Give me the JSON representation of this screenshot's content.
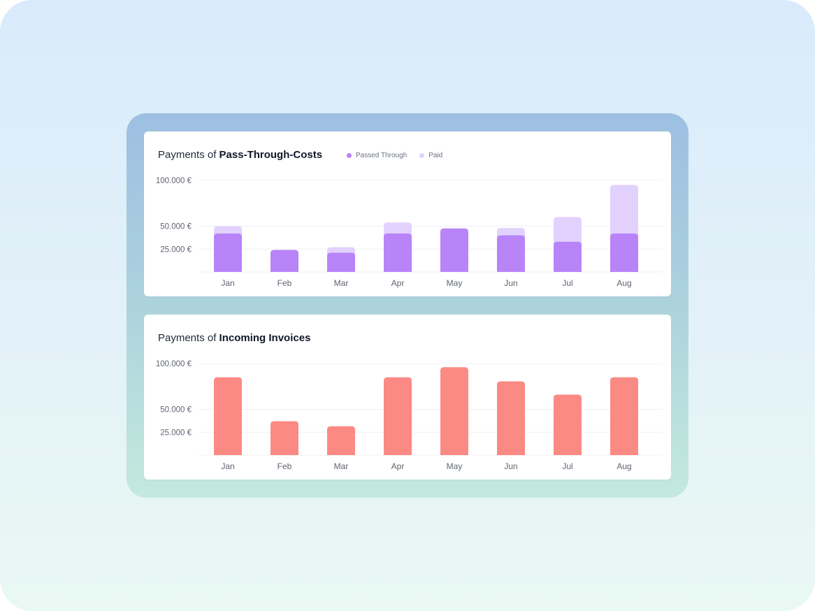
{
  "colors": {
    "passed_through": "#b884f8",
    "paid": "#e3d1fd",
    "incoming": "#fc8a84",
    "grid": "#f0f0f3",
    "tick": "#5f6470"
  },
  "chart_data": [
    {
      "type": "bar",
      "title_prefix": "Payments of ",
      "title_bold": "Pass-Through-Costs",
      "categories": [
        "Jan",
        "Feb",
        "Mar",
        "Apr",
        "May",
        "Jun",
        "Jul",
        "Aug"
      ],
      "series": [
        {
          "name": "Passed Through",
          "values": [
            42000,
            24000,
            21000,
            42000,
            47500,
            40000,
            33000,
            42000
          ]
        },
        {
          "name": "Paid",
          "values": [
            50000,
            24000,
            27000,
            54000,
            47500,
            48000,
            60000,
            95000
          ]
        }
      ],
      "overlay": true,
      "yticks": [
        {
          "value": 25000,
          "label": "25.000 €"
        },
        {
          "value": 50000,
          "label": "50.000 €"
        },
        {
          "value": 100000,
          "label": "100.000 €"
        }
      ],
      "ylim": [
        0,
        100000
      ],
      "legend": "top"
    },
    {
      "type": "bar",
      "title_prefix": "Payments of ",
      "title_bold": "Incoming Invoices",
      "categories": [
        "Jan",
        "Feb",
        "Mar",
        "Apr",
        "May",
        "Jun",
        "Jul",
        "Aug"
      ],
      "series": [
        {
          "name": "Incoming Invoices",
          "values": [
            85000,
            37000,
            31500,
            85000,
            96000,
            80500,
            66000,
            85000
          ]
        }
      ],
      "yticks": [
        {
          "value": 25000,
          "label": "25.000 €"
        },
        {
          "value": 50000,
          "label": "50.000 €"
        },
        {
          "value": 100000,
          "label": "100.000 €"
        }
      ],
      "ylim": [
        0,
        100000
      ]
    }
  ]
}
